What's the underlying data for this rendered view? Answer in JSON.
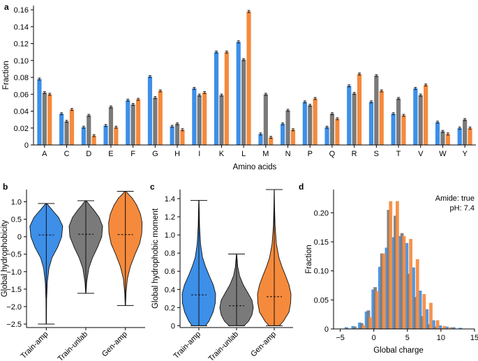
{
  "colors": {
    "train_amp": "#3d8fe8",
    "train_unlab": "#7a7a7a",
    "gen_amp": "#f58a3c"
  },
  "chart_data": [
    {
      "panel": "a",
      "type": "bar",
      "xlabel": "Amino acids",
      "ylabel": "Fraction",
      "ylim": [
        0,
        0.165
      ],
      "yticks": [
        0,
        0.02,
        0.04,
        0.06,
        0.08,
        0.1,
        0.12,
        0.14,
        0.16
      ],
      "ytick_labels": [
        "0",
        "0.02",
        "0.04",
        "0.06",
        "0.08",
        "0.10",
        "0.12",
        "0.14",
        "0.16"
      ],
      "categories": [
        "A",
        "C",
        "D",
        "E",
        "F",
        "G",
        "H",
        "I",
        "K",
        "L",
        "M",
        "N",
        "P",
        "Q",
        "R",
        "S",
        "T",
        "V",
        "W",
        "Y"
      ],
      "series": [
        {
          "name": "Train-amp",
          "values": [
            0.078,
            0.037,
            0.021,
            0.023,
            0.053,
            0.081,
            0.022,
            0.067,
            0.11,
            0.122,
            0.013,
            0.025,
            0.051,
            0.021,
            0.07,
            0.051,
            0.037,
            0.067,
            0.027,
            0.02
          ]
        },
        {
          "name": "Train-unlab",
          "values": [
            0.062,
            0.028,
            0.035,
            0.045,
            0.048,
            0.056,
            0.025,
            0.059,
            0.059,
            0.101,
            0.06,
            0.041,
            0.047,
            0.037,
            0.061,
            0.082,
            0.055,
            0.059,
            0.016,
            0.03
          ]
        },
        {
          "name": "Gen-amp",
          "values": [
            0.06,
            0.042,
            0.011,
            0.021,
            0.054,
            0.064,
            0.018,
            0.062,
            0.11,
            0.158,
            0.009,
            0.018,
            0.055,
            0.031,
            0.084,
            0.064,
            0.035,
            0.071,
            0.013,
            0.02
          ]
        }
      ]
    },
    {
      "panel": "b",
      "type": "violin",
      "ylabel": "Global hydrophobicity",
      "ylim": [
        -2.6,
        1.35
      ],
      "yticks": [
        1.0,
        0.5,
        0,
        -0.5,
        -1.0,
        -1.5,
        -2.0,
        -2.5
      ],
      "ytick_labels": [
        "1.0",
        "0.5",
        "0",
        "−0.5",
        "−1.0",
        "−1.5",
        "−2.0",
        "−2.5"
      ],
      "categories": [
        "Train-amp",
        "Train-unlab",
        "Gen-amp"
      ],
      "groups": [
        {
          "min": -2.5,
          "max": 0.95,
          "median": 0.05,
          "profile": [
            [
              -2.5,
              0.01
            ],
            [
              -1.8,
              0.02
            ],
            [
              -1.3,
              0.06
            ],
            [
              -0.9,
              0.16
            ],
            [
              -0.6,
              0.34
            ],
            [
              -0.3,
              0.68
            ],
            [
              0.0,
              0.92
            ],
            [
              0.3,
              0.98
            ],
            [
              0.55,
              0.74
            ],
            [
              0.75,
              0.38
            ],
            [
              0.9,
              0.12
            ],
            [
              0.95,
              0.02
            ]
          ]
        },
        {
          "min": -1.62,
          "max": 1.03,
          "median": 0.07,
          "profile": [
            [
              -1.62,
              0.01
            ],
            [
              -1.3,
              0.05
            ],
            [
              -0.9,
              0.18
            ],
            [
              -0.6,
              0.4
            ],
            [
              -0.3,
              0.7
            ],
            [
              0.0,
              0.95
            ],
            [
              0.3,
              1.0
            ],
            [
              0.55,
              0.8
            ],
            [
              0.75,
              0.5
            ],
            [
              0.9,
              0.24
            ],
            [
              1.0,
              0.08
            ],
            [
              1.03,
              0.02
            ]
          ]
        },
        {
          "min": -1.97,
          "max": 1.3,
          "median": 0.06,
          "profile": [
            [
              -1.97,
              0.01
            ],
            [
              -1.6,
              0.04
            ],
            [
              -1.2,
              0.12
            ],
            [
              -0.85,
              0.3
            ],
            [
              -0.5,
              0.58
            ],
            [
              -0.2,
              0.85
            ],
            [
              0.1,
              0.98
            ],
            [
              0.4,
              1.0
            ],
            [
              0.65,
              0.9
            ],
            [
              0.9,
              0.68
            ],
            [
              1.1,
              0.42
            ],
            [
              1.22,
              0.18
            ],
            [
              1.3,
              0.03
            ]
          ]
        }
      ]
    },
    {
      "panel": "c",
      "type": "violin",
      "ylabel": "Global hydrophobic moment",
      "ylim": [
        -0.02,
        1.5
      ],
      "yticks": [
        0,
        0.2,
        0.4,
        0.6,
        0.8,
        1.0,
        1.2,
        1.4
      ],
      "ytick_labels": [
        "0",
        "0.2",
        "0.4",
        "0.6",
        "0.8",
        "1.0",
        "1.2",
        "1.4"
      ],
      "categories": [
        "Train-amp",
        "Train-unlab",
        "Gen-amp"
      ],
      "groups": [
        {
          "min": 0.0,
          "max": 1.38,
          "median": 0.34,
          "profile": [
            [
              0.0,
              0.4
            ],
            [
              0.05,
              0.6
            ],
            [
              0.15,
              0.85
            ],
            [
              0.25,
              0.98
            ],
            [
              0.35,
              1.0
            ],
            [
              0.45,
              0.86
            ],
            [
              0.55,
              0.62
            ],
            [
              0.65,
              0.4
            ],
            [
              0.75,
              0.22
            ],
            [
              0.9,
              0.1
            ],
            [
              1.1,
              0.04
            ],
            [
              1.38,
              0.01
            ]
          ]
        },
        {
          "min": 0.0,
          "max": 0.79,
          "median": 0.22,
          "profile": [
            [
              0.0,
              0.45
            ],
            [
              0.05,
              0.72
            ],
            [
              0.12,
              0.92
            ],
            [
              0.2,
              1.0
            ],
            [
              0.28,
              0.92
            ],
            [
              0.36,
              0.68
            ],
            [
              0.45,
              0.4
            ],
            [
              0.55,
              0.18
            ],
            [
              0.65,
              0.07
            ],
            [
              0.79,
              0.01
            ]
          ]
        },
        {
          "min": 0.0,
          "max": 1.5,
          "median": 0.32,
          "profile": [
            [
              0.0,
              0.3
            ],
            [
              0.05,
              0.55
            ],
            [
              0.15,
              0.88
            ],
            [
              0.25,
              0.98
            ],
            [
              0.35,
              1.0
            ],
            [
              0.45,
              0.88
            ],
            [
              0.55,
              0.68
            ],
            [
              0.65,
              0.46
            ],
            [
              0.75,
              0.28
            ],
            [
              0.9,
              0.13
            ],
            [
              1.1,
              0.05
            ],
            [
              1.3,
              0.02
            ],
            [
              1.5,
              0.005
            ]
          ]
        }
      ]
    },
    {
      "panel": "d",
      "type": "histogram",
      "xlabel": "Global charge",
      "ylabel": "Fraction",
      "xlim": [
        -6,
        15
      ],
      "ylim": [
        0,
        0.24
      ],
      "xticks": [
        -5,
        0,
        5,
        10,
        15
      ],
      "xtick_labels": [
        "−5",
        "0",
        "5",
        "10",
        "15"
      ],
      "yticks": [
        0,
        0.05,
        0.1,
        0.15,
        0.2
      ],
      "ytick_labels": [
        "0",
        "0.05",
        "0.10",
        "0.15",
        "0.20"
      ],
      "annotations": [
        "Amide: true",
        "pH: 7.4"
      ],
      "bin_starts": [
        -4,
        -3,
        -2,
        -1,
        0,
        1,
        2,
        3,
        4,
        5,
        6,
        7,
        8,
        9,
        10,
        11,
        12,
        13
      ],
      "bin_width": 1,
      "series": [
        {
          "name": "Train-amp",
          "values": [
            0.003,
            0.005,
            0.011,
            0.03,
            0.068,
            0.107,
            0.14,
            0.158,
            0.16,
            0.148,
            0.106,
            0.066,
            0.034,
            0.015,
            0.006,
            0.004,
            0.003,
            0.002
          ]
        },
        {
          "name": "Train-unlab",
          "values": [
            0.001,
            0.004,
            0.01,
            0.032,
            0.072,
            0.13,
            0.205,
            0.195,
            0.165,
            0.095,
            0.055,
            0.022,
            0.008,
            0.004,
            0.001,
            0.0,
            0.0,
            0.0
          ]
        },
        {
          "name": "Gen-amp",
          "values": [
            0.0,
            0.001,
            0.006,
            0.02,
            0.065,
            0.13,
            0.22,
            0.22,
            0.16,
            0.155,
            0.12,
            0.06,
            0.045,
            0.015,
            0.005,
            0.003,
            0.0,
            0.0
          ]
        }
      ]
    }
  ]
}
